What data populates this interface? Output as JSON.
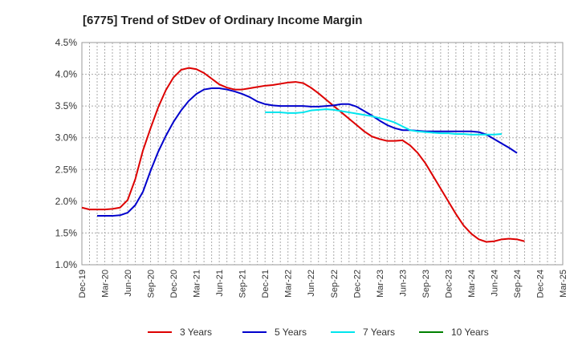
{
  "chart_data": {
    "type": "line",
    "title": "[6775]  Trend of StDev of Ordinary Income Margin",
    "xlabel": "",
    "ylabel": "",
    "x_categories": [
      "Dec-19",
      "Mar-20",
      "Jun-20",
      "Sep-20",
      "Dec-20",
      "Mar-21",
      "Jun-21",
      "Sep-21",
      "Dec-21",
      "Mar-22",
      "Jun-22",
      "Sep-22",
      "Dec-22",
      "Mar-23",
      "Jun-23",
      "Sep-23",
      "Dec-23",
      "Mar-24",
      "Jun-24",
      "Sep-24",
      "Dec-24",
      "Mar-25"
    ],
    "y_ticks": [
      "4.5%",
      "4.0%",
      "3.5%",
      "3.0%",
      "2.5%",
      "2.0%",
      "1.5%",
      "1.0%"
    ],
    "ylim": [
      1.0,
      4.5
    ],
    "y_unit": "%",
    "grid": true,
    "legend_position": "bottom",
    "series": [
      {
        "name": "3 Years",
        "color": "#dd0000",
        "start_index": 0,
        "values": [
          1.9,
          1.87,
          1.87,
          1.87,
          1.88,
          1.9,
          2.02,
          2.35,
          2.8,
          3.15,
          3.48,
          3.75,
          3.95,
          4.07,
          4.1,
          4.08,
          4.02,
          3.93,
          3.84,
          3.79,
          3.76,
          3.76,
          3.78,
          3.8,
          3.82,
          3.83,
          3.85,
          3.87,
          3.88,
          3.86,
          3.79,
          3.7,
          3.6,
          3.5,
          3.4,
          3.3,
          3.2,
          3.1,
          3.02,
          2.98,
          2.95,
          2.95,
          2.96,
          2.88,
          2.76,
          2.6,
          2.4,
          2.2,
          2.0,
          1.8,
          1.62,
          1.49,
          1.4,
          1.36,
          1.37,
          1.4,
          1.41,
          1.4,
          1.37
        ]
      },
      {
        "name": "5 Years",
        "color": "#0000cc",
        "start_index": 2,
        "values": [
          1.77,
          1.77,
          1.77,
          1.78,
          1.82,
          1.94,
          2.15,
          2.48,
          2.78,
          3.03,
          3.25,
          3.43,
          3.58,
          3.69,
          3.76,
          3.78,
          3.78,
          3.76,
          3.73,
          3.69,
          3.64,
          3.57,
          3.53,
          3.51,
          3.5,
          3.5,
          3.5,
          3.5,
          3.49,
          3.49,
          3.5,
          3.51,
          3.53,
          3.53,
          3.49,
          3.42,
          3.35,
          3.27,
          3.2,
          3.15,
          3.12,
          3.12,
          3.11,
          3.1,
          3.1,
          3.1,
          3.1,
          3.1,
          3.1,
          3.1,
          3.09,
          3.05,
          2.98,
          2.91,
          2.84,
          2.76
        ]
      },
      {
        "name": "7 Years",
        "color": "#00e5ee",
        "start_index": 24,
        "values": [
          3.4,
          3.4,
          3.4,
          3.39,
          3.39,
          3.4,
          3.43,
          3.44,
          3.45,
          3.44,
          3.42,
          3.4,
          3.38,
          3.36,
          3.34,
          3.31,
          3.28,
          3.24,
          3.18,
          3.12,
          3.1,
          3.09,
          3.08,
          3.07,
          3.07,
          3.06,
          3.06,
          3.05,
          3.05,
          3.05,
          3.05,
          3.06
        ]
      },
      {
        "name": "10 Years",
        "color": "#008000",
        "start_index": 0,
        "values": []
      }
    ]
  }
}
